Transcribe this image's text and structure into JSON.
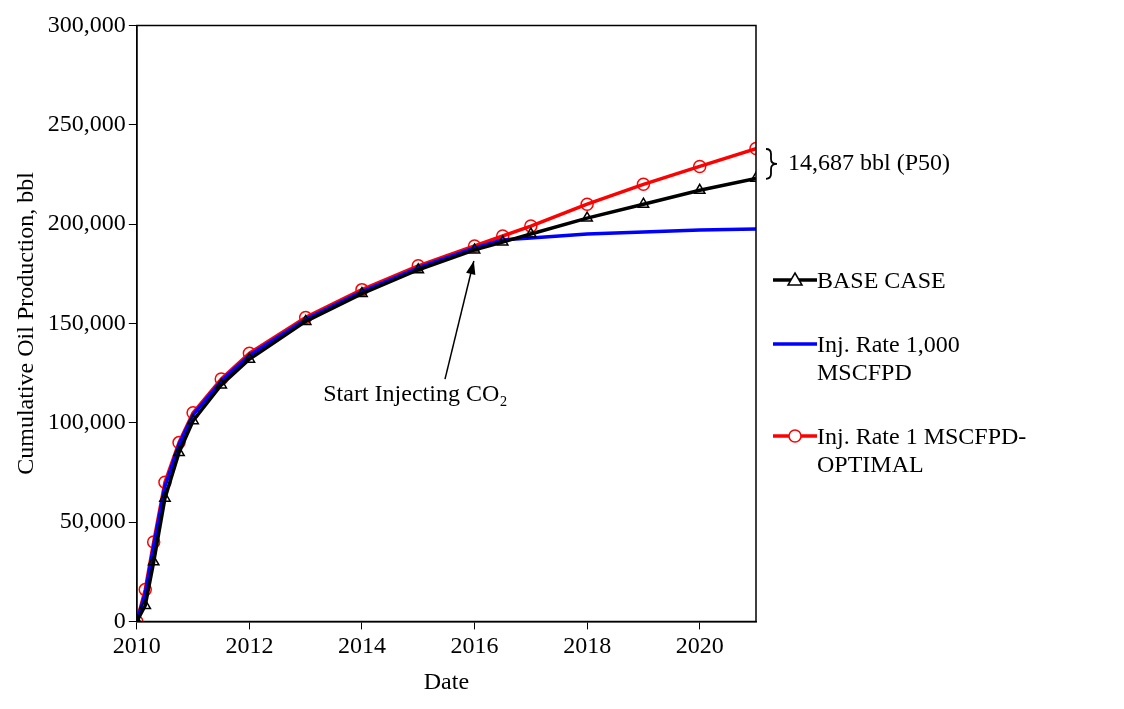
{
  "chart_data": {
    "type": "line",
    "xlabel": "Date",
    "ylabel": "Cumulative Oil Production, bbl",
    "xlim": [
      2010,
      2021
    ],
    "xticks": [
      2010,
      2012,
      2014,
      2016,
      2018,
      2020
    ],
    "ylim": [
      0,
      300000
    ],
    "yticks": [
      {
        "value": 0,
        "label": "0"
      },
      {
        "value": 50000,
        "label": "50,000"
      },
      {
        "value": 100000,
        "label": "100,000"
      },
      {
        "value": 150000,
        "label": "150,000"
      },
      {
        "value": 200000,
        "label": "200,000"
      },
      {
        "value": 250000,
        "label": "250,000"
      },
      {
        "value": 300000,
        "label": "300,000"
      }
    ],
    "legend": "right",
    "annotations": [
      "Start Injecting CO₂",
      "14,687 bbl (P50)"
    ],
    "series": [
      {
        "name": "BASE CASE",
        "color": "#000000",
        "marker": "triangle",
        "x": [
          2010,
          2010.15,
          2010.3,
          2010.5,
          2010.75,
          2011,
          2011.5,
          2012,
          2013,
          2014,
          2015,
          2016,
          2016.5,
          2017,
          2018,
          2019,
          2020,
          2021
        ],
        "values": [
          0,
          8000,
          30000,
          62000,
          85000,
          101000,
          119000,
          132000,
          151000,
          165000,
          177000,
          187000,
          191000,
          195000,
          203000,
          210000,
          217000,
          223000
        ]
      },
      {
        "name": "Inj. Rate 1,000 MSCFPD",
        "color": "#0000ff",
        "marker": "none",
        "x": [
          2010,
          2010.15,
          2010.3,
          2010.5,
          2010.75,
          2011,
          2011.5,
          2012,
          2013,
          2014,
          2015,
          2016,
          2016.5,
          2017,
          2018,
          2019,
          2020,
          2021
        ],
        "values": [
          0,
          14000,
          38000,
          68000,
          89000,
          104000,
          121000,
          134000,
          152000,
          166000,
          178000,
          188000,
          192000,
          193000,
          195000,
          196000,
          197000,
          197500
        ]
      },
      {
        "name": "Inj. Rate 1 MSCFPD-OPTIMAL",
        "color": "#ff0000",
        "marker": "circle",
        "x": [
          2010,
          2010.15,
          2010.3,
          2010.5,
          2010.75,
          2011,
          2011.5,
          2012,
          2013,
          2014,
          2015,
          2016,
          2016.5,
          2017,
          2018,
          2019,
          2020,
          2021
        ],
        "values": [
          0,
          16000,
          40000,
          70000,
          90000,
          105000,
          122000,
          135000,
          153000,
          167000,
          179000,
          189000,
          194000,
          199000,
          210000,
          220000,
          229000,
          238000
        ]
      }
    ]
  }
}
